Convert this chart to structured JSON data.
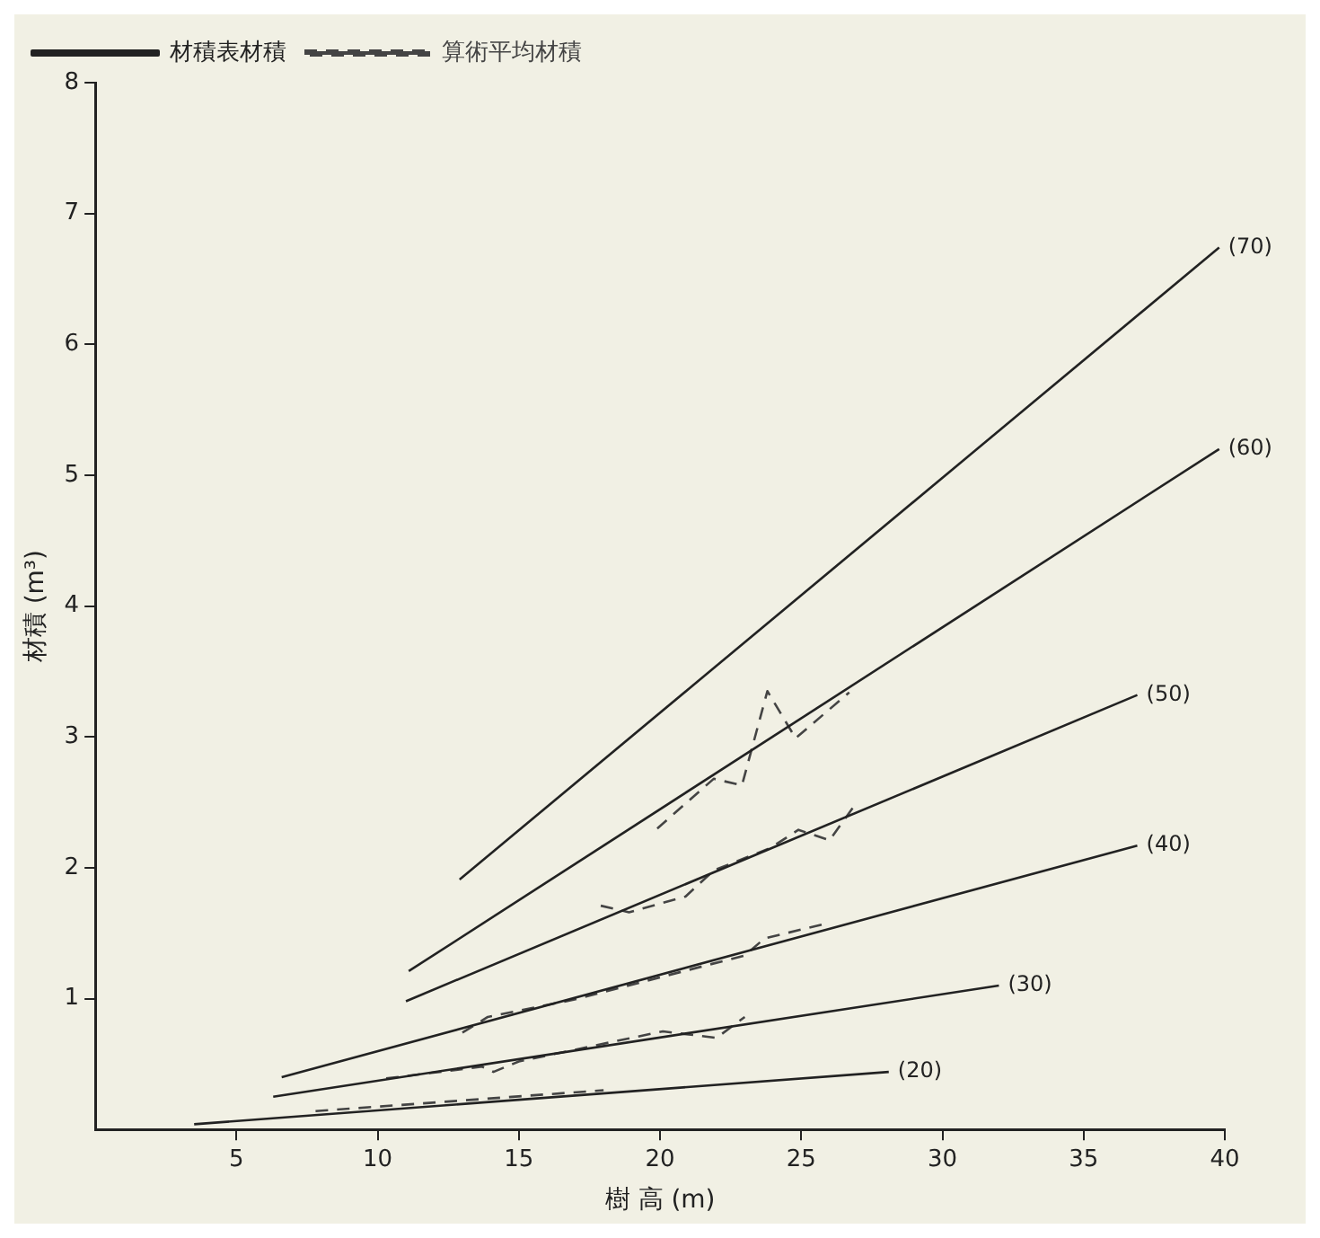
{
  "chart_data": {
    "type": "line",
    "xlabel": "樹 高 (m)",
    "ylabel": "材積 (m³)",
    "xlim": [
      0,
      40
    ],
    "ylim": [
      0,
      8
    ],
    "xticks": [
      5,
      10,
      15,
      20,
      25,
      30,
      35,
      40
    ],
    "yticks": [
      1,
      2,
      3,
      4,
      5,
      6,
      7,
      8
    ],
    "grid": false,
    "legend": "top left",
    "marker": "none",
    "series": [
      {
        "name": "材積表材積",
        "color": "#222222",
        "line_style": "solid",
        "x": [
          3.5,
          28.1
        ],
        "values": [
          0.04,
          0.44
        ]
      },
      {
        "color": "#222222",
        "line_style": "solid",
        "x": [
          6.3,
          32
        ],
        "values": [
          0.25,
          1.1
        ]
      },
      {
        "color": "#222222",
        "line_style": "solid",
        "x": [
          6.6,
          36.9
        ],
        "values": [
          0.4,
          2.17
        ]
      },
      {
        "color": "#222222",
        "line_style": "solid",
        "x": [
          11,
          36.9
        ],
        "values": [
          0.98,
          3.32
        ]
      },
      {
        "color": "#222222",
        "line_style": "solid",
        "x": [
          11.1,
          39.8
        ],
        "values": [
          1.21,
          5.2
        ]
      },
      {
        "color": "#222222",
        "line_style": "solid",
        "x": [
          12.9,
          39.8
        ],
        "values": [
          1.91,
          6.74
        ]
      },
      {
        "name": "算術平均材積",
        "color": "#444444",
        "line_style": "dashed",
        "x": [
          19.9,
          21.9,
          22.9,
          23.8,
          24.8,
          26.7
        ],
        "values": [
          2.3,
          2.68,
          2.63,
          3.35,
          2.99,
          3.34
        ]
      },
      {
        "color": "#444444",
        "line_style": "dashed",
        "x": [
          17.9,
          18.9,
          20.9,
          21.9,
          23.9,
          24.9,
          26,
          26.9
        ],
        "values": [
          1.71,
          1.66,
          1.78,
          1.98,
          2.15,
          2.29,
          2.21,
          2.48
        ]
      },
      {
        "color": "#444444",
        "line_style": "dashed",
        "x": [
          13,
          13.9,
          16.9,
          23,
          23.7,
          26
        ],
        "values": [
          0.74,
          0.86,
          0.99,
          1.33,
          1.46,
          1.58
        ]
      },
      {
        "color": "#444444",
        "line_style": "dashed",
        "x": [
          10.3,
          13.7,
          14.1,
          15,
          20.1,
          22,
          23
        ],
        "values": [
          0.39,
          0.48,
          0.44,
          0.52,
          0.75,
          0.7,
          0.86
        ]
      },
      {
        "color": "#444444",
        "line_style": "dashed",
        "x": [
          7.8,
          18
        ],
        "values": [
          0.14,
          0.3
        ]
      }
    ],
    "annotations": [
      {
        "text": "(20)",
        "x": 28.1,
        "y": 0.44
      },
      {
        "text": "(30)",
        "x": 32,
        "y": 1.1
      },
      {
        "text": "(40)",
        "x": 36.9,
        "y": 2.17
      },
      {
        "text": "(50)",
        "x": 36.9,
        "y": 3.32
      },
      {
        "text": "(60)",
        "x": 39.8,
        "y": 5.2
      },
      {
        "text": "(70)",
        "x": 39.8,
        "y": 6.74
      }
    ]
  }
}
